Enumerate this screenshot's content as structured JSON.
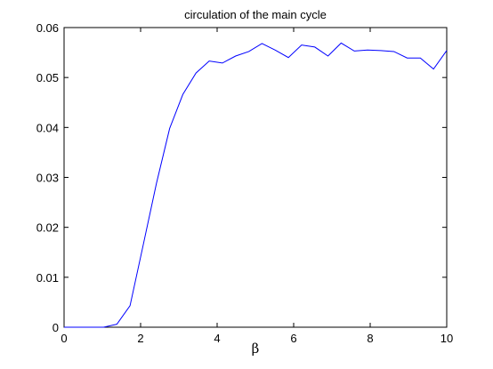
{
  "chart_data": {
    "type": "line",
    "title": "circulation of the main cycle",
    "xlabel": "β",
    "ylabel": "",
    "xlim": [
      0,
      10
    ],
    "ylim": [
      0,
      0.06
    ],
    "xticks": [
      0,
      2,
      4,
      6,
      8,
      10
    ],
    "yticks": [
      0,
      0.01,
      0.02,
      0.03,
      0.04,
      0.05,
      0.06
    ],
    "xtick_labels": [
      "0",
      "2",
      "4",
      "6",
      "8",
      "10"
    ],
    "ytick_labels": [
      "0",
      "0.01",
      "0.02",
      "0.03",
      "0.04",
      "0.05",
      "0.06"
    ],
    "grid": false,
    "legend": "none",
    "series": [
      {
        "color": "#0000ff",
        "x": [
          0,
          0.345,
          0.69,
          1.034,
          1.379,
          1.724,
          2.069,
          2.414,
          2.759,
          3.103,
          3.448,
          3.793,
          4.138,
          4.483,
          4.828,
          5.172,
          5.517,
          5.862,
          6.207,
          6.552,
          6.897,
          7.241,
          7.586,
          7.931,
          8.276,
          8.621,
          8.966,
          9.31,
          9.655,
          10
        ],
        "y": [
          0,
          0,
          0,
          0,
          0.0006,
          0.0043,
          0.0165,
          0.0288,
          0.0398,
          0.0466,
          0.0509,
          0.0533,
          0.0529,
          0.0543,
          0.0552,
          0.0568,
          0.0555,
          0.054,
          0.0565,
          0.0561,
          0.0543,
          0.0569,
          0.0553,
          0.0555,
          0.0554,
          0.0552,
          0.0539,
          0.0539,
          0.0517,
          0.0554
        ]
      }
    ]
  }
}
